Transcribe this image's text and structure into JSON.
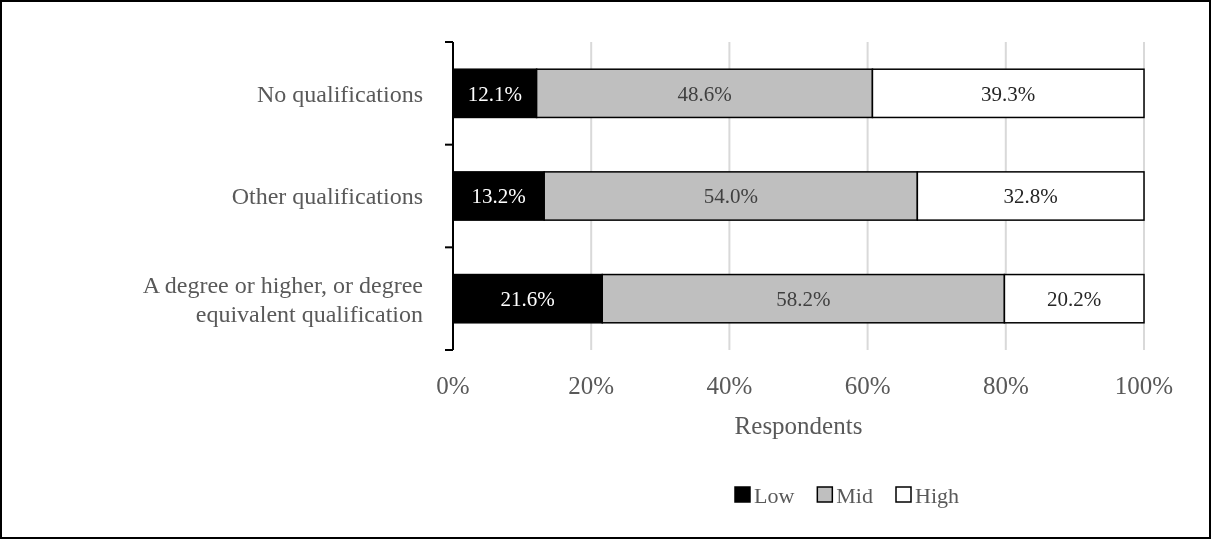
{
  "chart_data": {
    "type": "bar",
    "orientation": "horizontal",
    "stacked": true,
    "xlabel": "Respondents",
    "categories": [
      "No qualifications",
      "Other qualifications",
      "A degree or higher, or degree equivalent qualification"
    ],
    "series": [
      {
        "name": "Low",
        "color": "#000000",
        "values": [
          12.1,
          13.2,
          21.6
        ],
        "value_labels": [
          "12.1%",
          "13.2%",
          "21.6%"
        ]
      },
      {
        "name": "Mid",
        "color": "#bfbfbf",
        "values": [
          48.6,
          54.0,
          58.2
        ],
        "value_labels": [
          "48.6%",
          "54.0%",
          "58.2%"
        ]
      },
      {
        "name": "High",
        "color": "#ffffff",
        "values": [
          39.3,
          32.8,
          20.2
        ],
        "value_labels": [
          "39.3%",
          "32.8%",
          "20.2%"
        ]
      }
    ],
    "xlim": [
      0,
      100
    ],
    "xticks": [
      {
        "value": 0,
        "label": "0%"
      },
      {
        "value": 20,
        "label": "20%"
      },
      {
        "value": 40,
        "label": "40%"
      },
      {
        "value": 60,
        "label": "60%"
      },
      {
        "value": 80,
        "label": "80%"
      },
      {
        "value": 100,
        "label": "100%"
      }
    ],
    "grid": "x",
    "legend": "bottom"
  }
}
